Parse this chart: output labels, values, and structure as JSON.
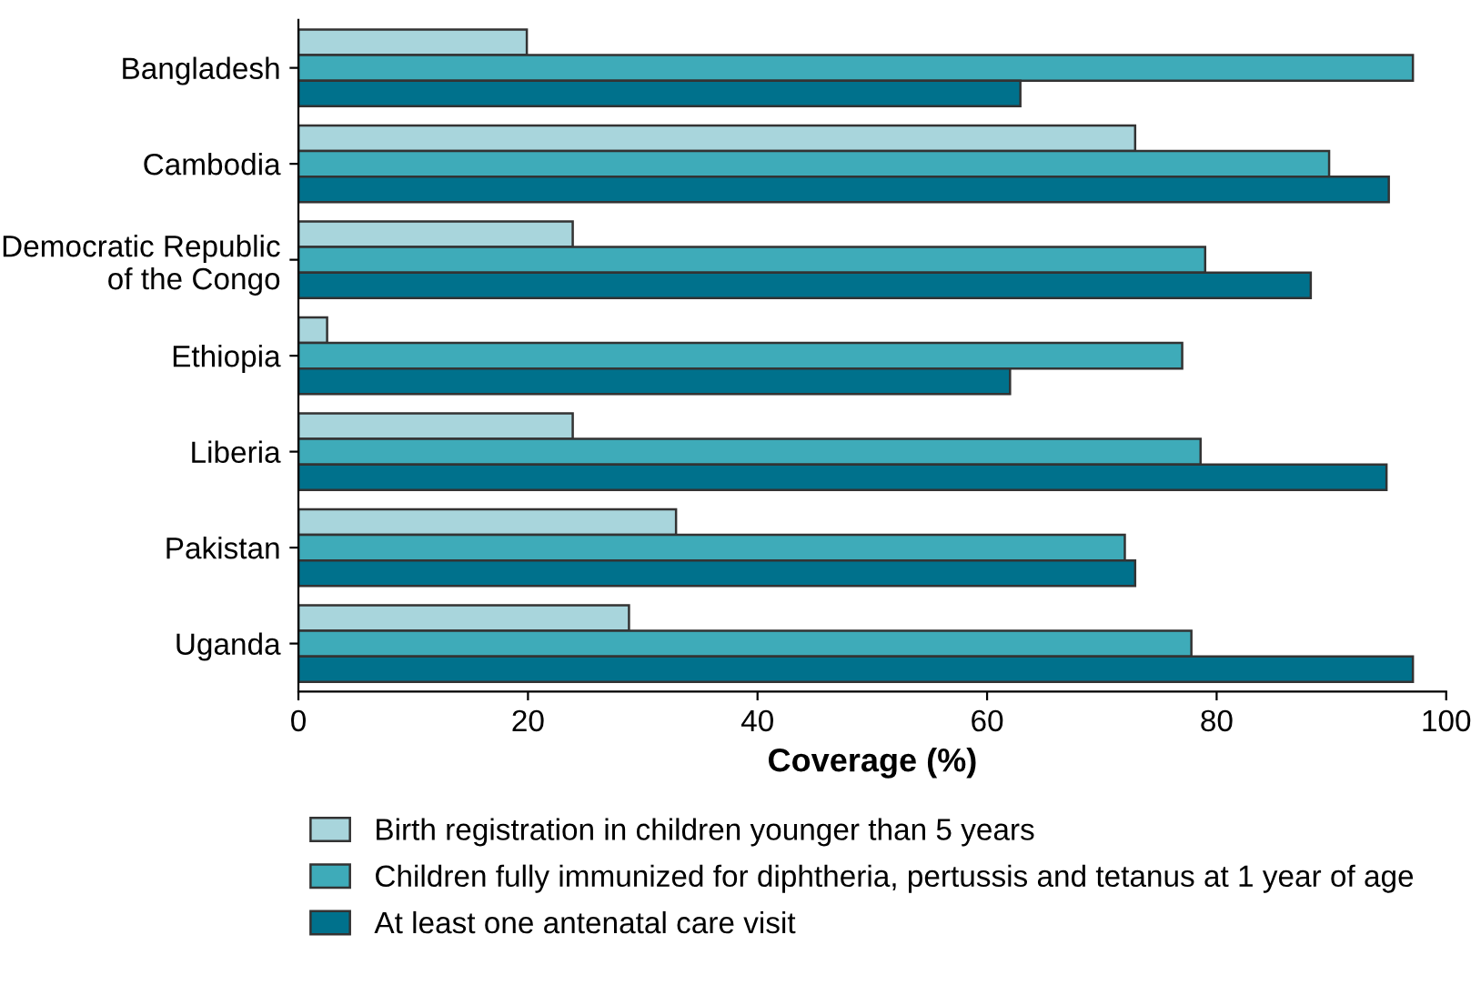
{
  "chart_data": {
    "type": "bar",
    "orientation": "horizontal",
    "xlabel": "Coverage (%)",
    "categories": [
      "Bangladesh",
      "Cambodia",
      "Democratic Republic\nof the Congo",
      "Ethiopia",
      "Liberia",
      "Pakistan",
      "Uganda"
    ],
    "series": [
      {
        "name": "Birth registration in children younger than 5 years",
        "color": "#a8d5dc",
        "values": [
          19.9,
          72.9,
          23.9,
          2.5,
          23.9,
          32.9,
          28.8
        ]
      },
      {
        "name": "Children fully immunized for diphtheria, pertussis and tetanus at 1 year of age",
        "color": "#3eabb9",
        "values": [
          97.1,
          89.8,
          79.0,
          77.0,
          78.6,
          72.0,
          77.8
        ]
      },
      {
        "name": "At least one antenatal care visit",
        "color": "#00718c",
        "values": [
          62.9,
          95.0,
          88.2,
          62.0,
          94.8,
          72.9,
          97.1
        ]
      }
    ],
    "xlim": [
      0,
      100
    ],
    "xticks": [
      0,
      20,
      40,
      60,
      80,
      100
    ],
    "grid": false,
    "legend": "bottom"
  }
}
